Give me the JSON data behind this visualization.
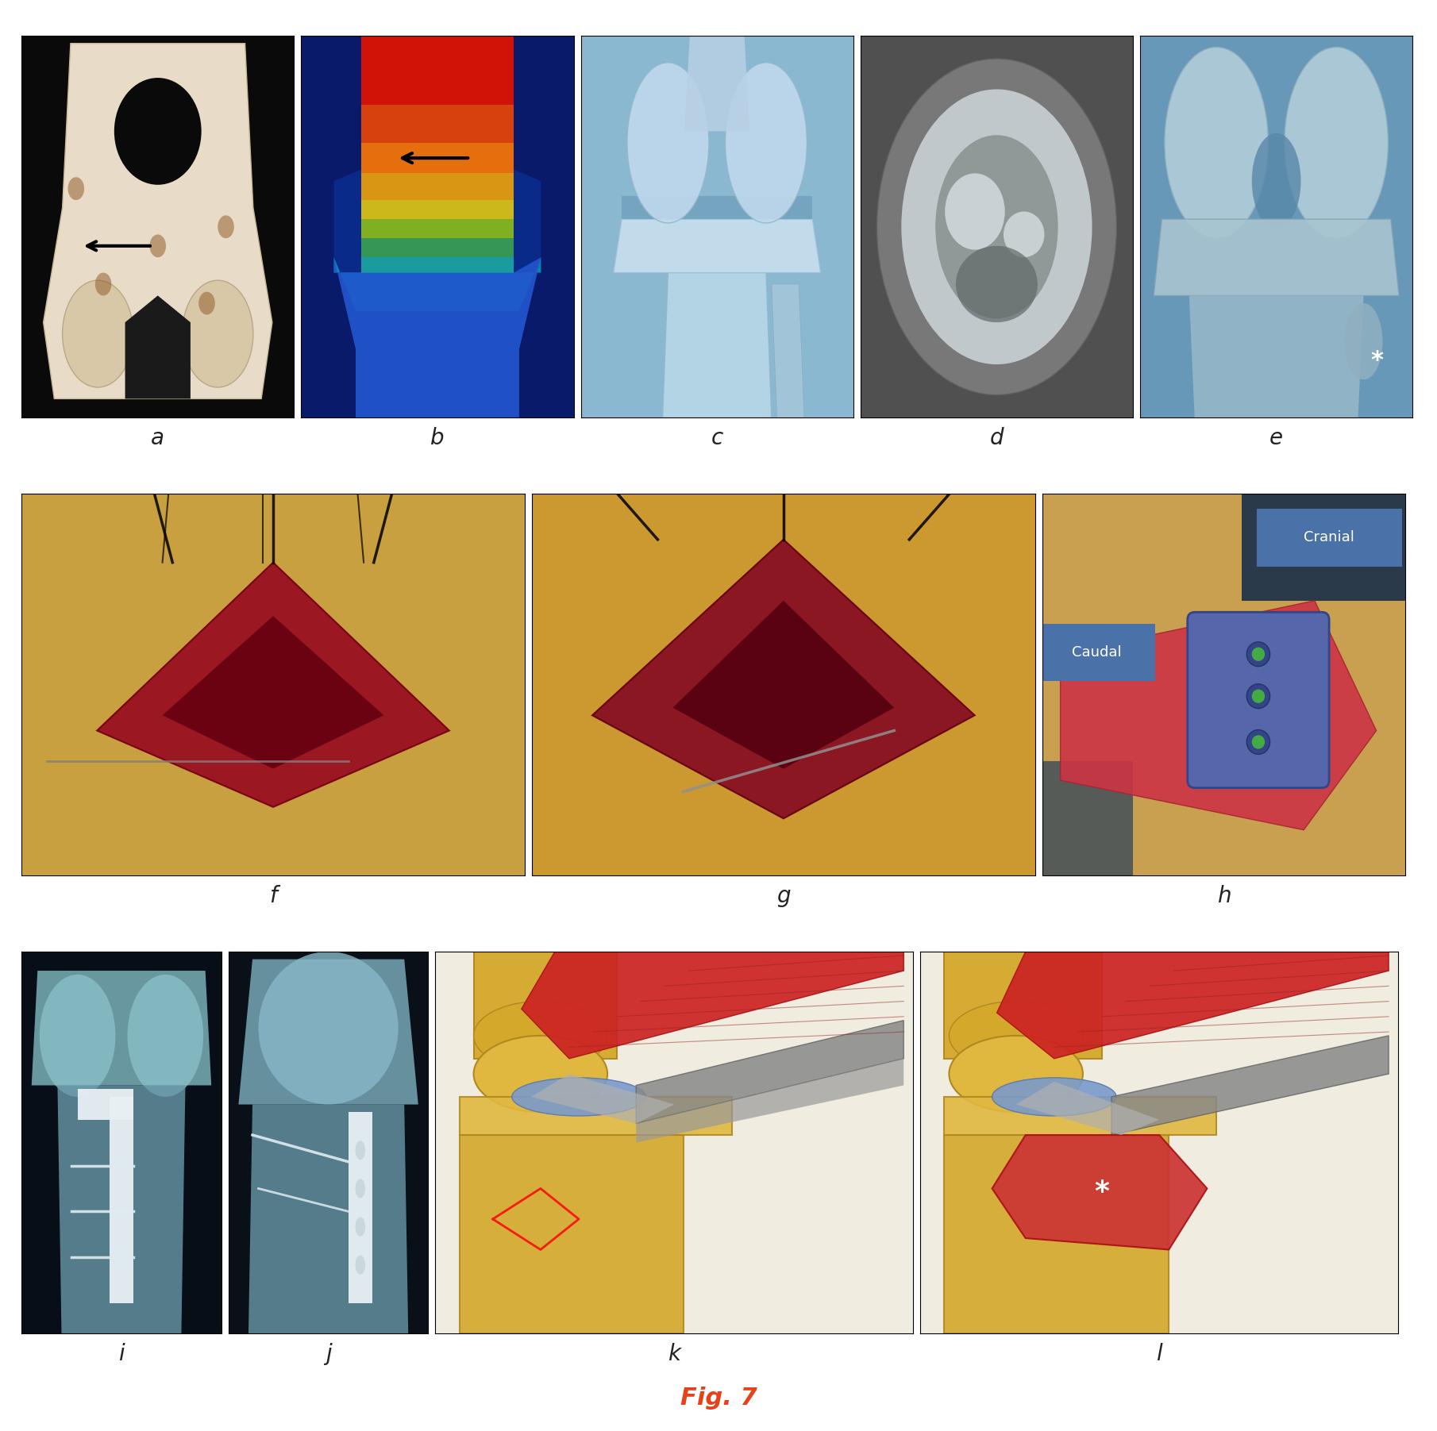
{
  "fig_label": "Fig. 7",
  "fig_label_color": "#e84118",
  "fig_label_fontsize": 22,
  "background_color": "#ffffff",
  "panel_labels": [
    "a",
    "b",
    "c",
    "d",
    "e",
    "f",
    "g",
    "h",
    "i",
    "j",
    "k",
    "l"
  ],
  "panel_label_fontsize": 20,
  "panel_label_color": "#222222",
  "cranial_label": "Cranial",
  "caudal_label": "Caudal",
  "cranial_color": "#4a72a8",
  "caudal_color": "#4a72a8",
  "panel_a_bg": "#0a0a0a",
  "panel_b_bg": "#1a3a8a",
  "panel_c_bg": "#a0c0d8",
  "panel_d_bg": "#707070",
  "panel_e_bg": "#7ab0c8",
  "panel_fg_bg": "#c8a050",
  "panel_h_bg": "#c0a860",
  "panel_ij_bg": "#0a1520",
  "panel_kl_bg": "#f0ece0"
}
